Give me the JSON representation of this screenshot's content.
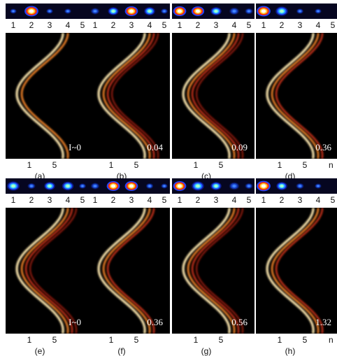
{
  "figure": {
    "strip_tick_labels": [
      "1",
      "2",
      "3",
      "4",
      "5"
    ],
    "bottom_tick_labels": [
      "1",
      "5"
    ],
    "n_label": "n",
    "colors": {
      "background": "#000000",
      "strip_bg": "#060620"
    },
    "panels": [
      {
        "caption": "(a)",
        "value": "I~0",
        "spots": [
          0.05,
          1.0,
          0.06,
          0.08,
          0.02
        ]
      },
      {
        "caption": "(b)",
        "value": "0.04",
        "spots": [
          0.3,
          0.55,
          0.9,
          0.6,
          0.1
        ]
      },
      {
        "caption": "(c)",
        "value": "0.09",
        "spots": [
          0.9,
          0.85,
          0.6,
          0.45,
          0.2
        ]
      },
      {
        "caption": "(d)",
        "value": "0.36",
        "spots": [
          1.0,
          0.8,
          0.1,
          0.05,
          0.02
        ]
      },
      {
        "caption": "(e)",
        "value": "I~0",
        "spots": [
          0.8,
          0.2,
          0.6,
          0.7,
          0.1
        ]
      },
      {
        "caption": "(f)",
        "value": "0.36",
        "spots": [
          0.3,
          0.9,
          0.9,
          0.15,
          0.05
        ]
      },
      {
        "caption": "(g)",
        "value": "0.56",
        "spots": [
          0.9,
          0.8,
          0.6,
          0.5,
          0.2
        ]
      },
      {
        "caption": "(h)",
        "value": "1.32",
        "spots": [
          1.0,
          0.6,
          0.2,
          0.05,
          0.02
        ]
      }
    ]
  }
}
